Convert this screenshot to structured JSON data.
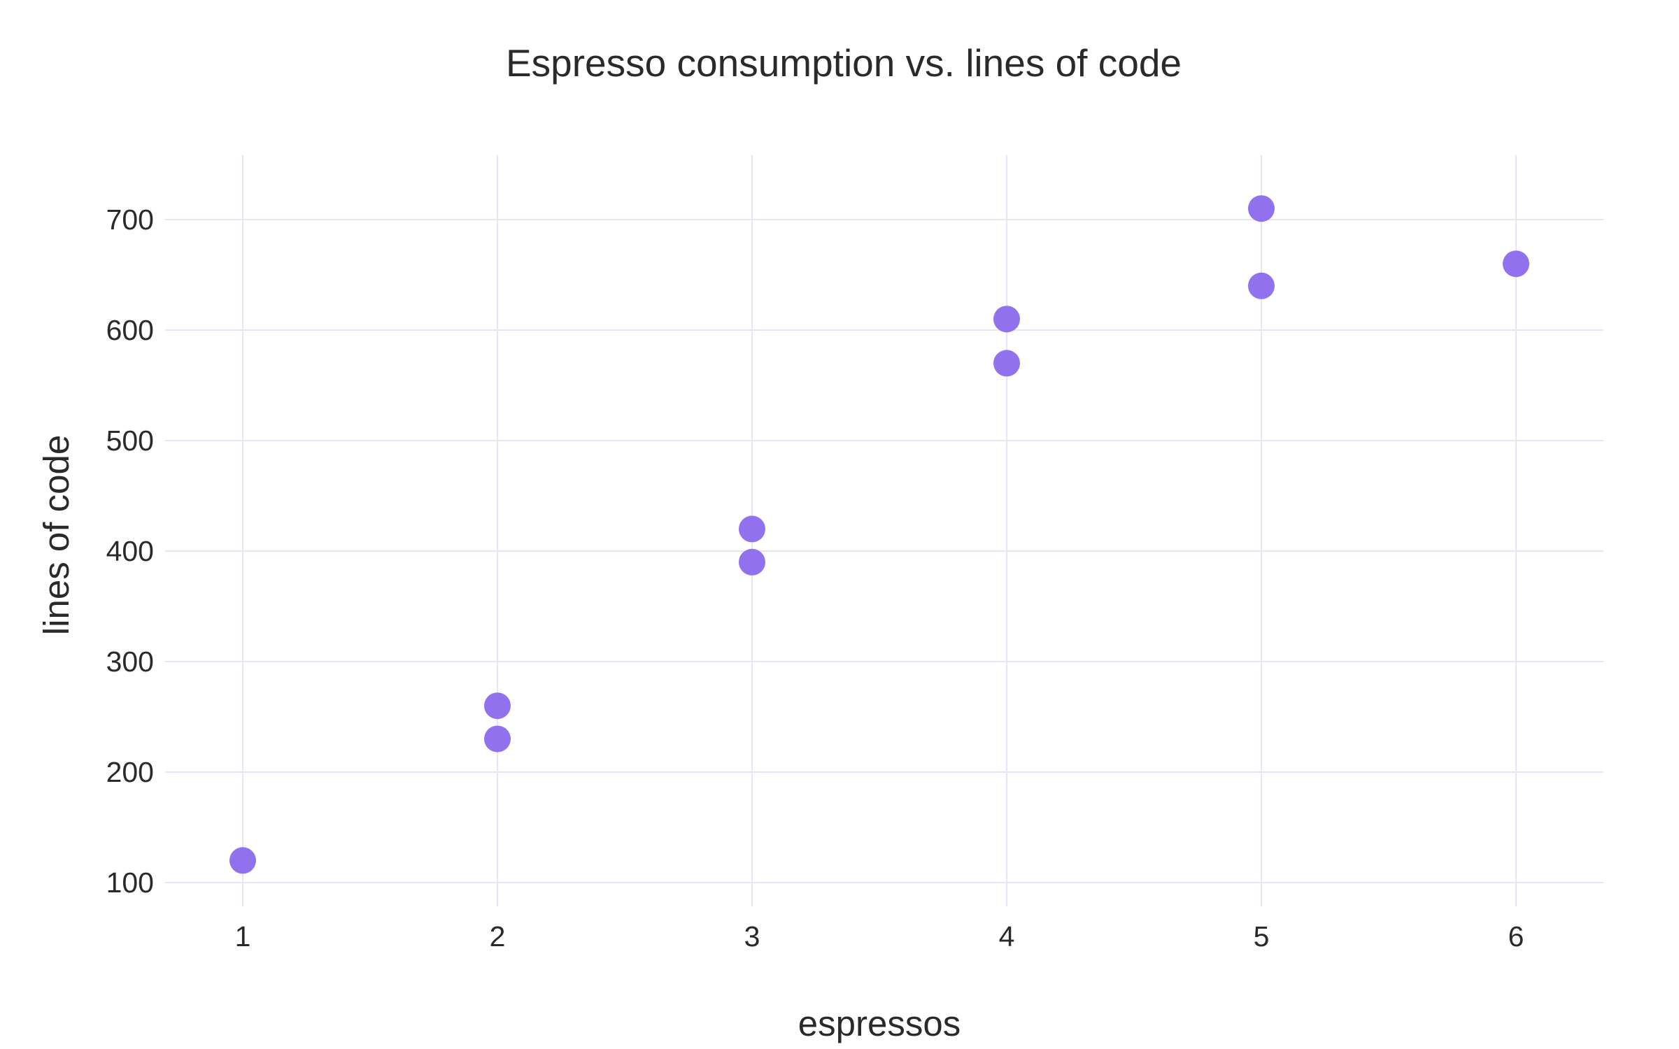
{
  "chart_data": {
    "type": "scatter",
    "title": "Espresso consumption vs. lines of code",
    "xlabel": "espressos",
    "ylabel": "lines of code",
    "x_ticks": [
      1,
      2,
      3,
      4,
      5,
      6
    ],
    "y_ticks": [
      100,
      200,
      300,
      400,
      500,
      600,
      700
    ],
    "xlim": [
      0.7,
      6.35
    ],
    "ylim": [
      80,
      760
    ],
    "grid": true,
    "legend": false,
    "marker_color": "#9171ee",
    "points": [
      {
        "x": 1,
        "y": 120
      },
      {
        "x": 2,
        "y": 230
      },
      {
        "x": 2,
        "y": 260
      },
      {
        "x": 3,
        "y": 390
      },
      {
        "x": 3,
        "y": 420
      },
      {
        "x": 4,
        "y": 570
      },
      {
        "x": 4,
        "y": 610
      },
      {
        "x": 5,
        "y": 640
      },
      {
        "x": 5,
        "y": 710
      },
      {
        "x": 6,
        "y": 660
      }
    ]
  }
}
